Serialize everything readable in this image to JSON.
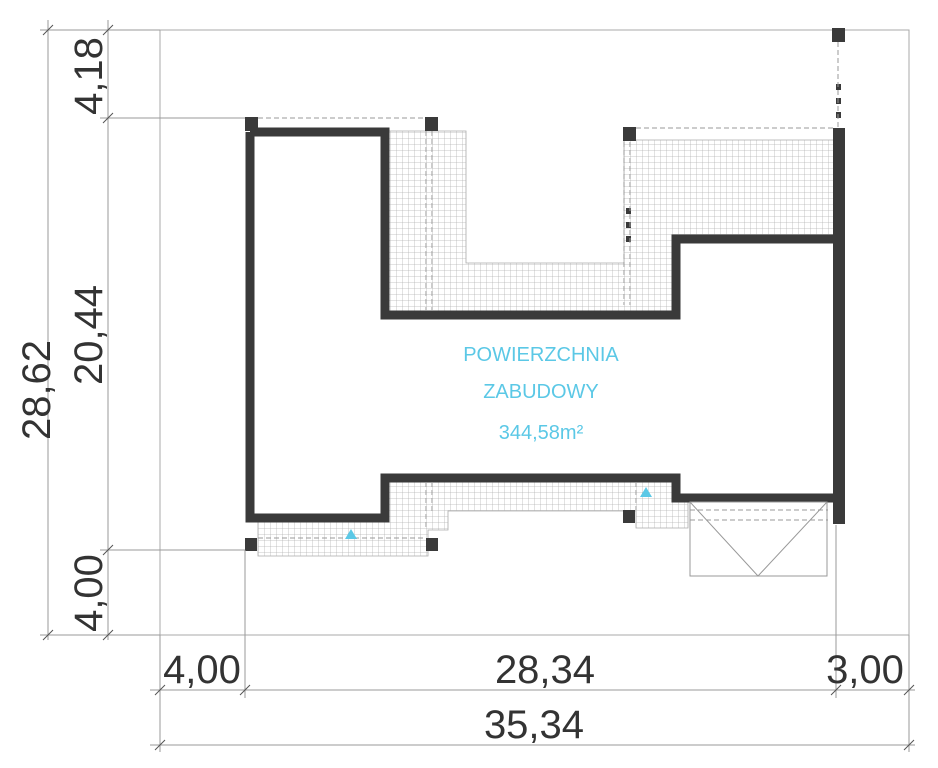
{
  "plan": {
    "area_label_line1": "POWIERZCHNIA",
    "area_label_line2": "ZABUDOWY",
    "area_value": "344,58m²"
  },
  "dimensions": {
    "left_total": "28,62",
    "left_top": "4,18",
    "left_middle": "20,44",
    "left_bottom": "4,00",
    "bottom_left": "4,00",
    "bottom_middle": "28,34",
    "bottom_right": "3,00",
    "bottom_total": "35,34"
  },
  "colors": {
    "wall": "#3a3a3a",
    "label": "#5bc8e6",
    "hatch": "#bdbdbd",
    "line": "#999999"
  }
}
